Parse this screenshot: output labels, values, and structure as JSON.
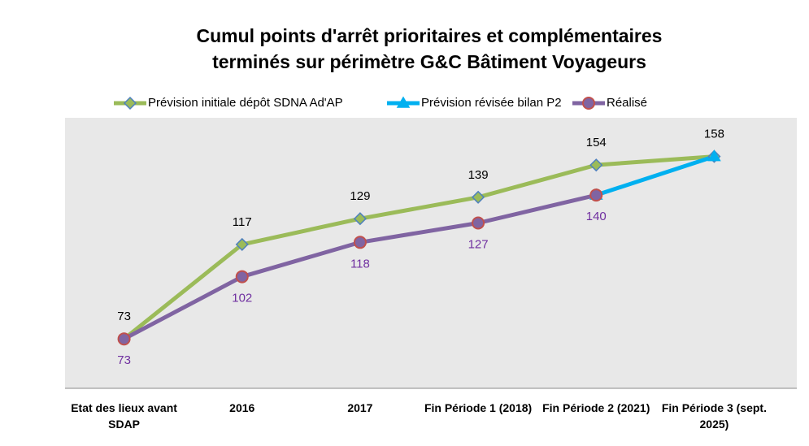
{
  "chart_data": {
    "type": "line",
    "title": "Cumul points d'arrêt prioritaires et complémentaires terminés sur périmètre G&C Bâtiment Voyageurs",
    "categories": [
      "Etat des lieux avant SDAP",
      "2016",
      "2017",
      "Fin Période 1 (2018)",
      "Fin Période 2 (2021)",
      "Fin Période 3 (sept. 2025)"
    ],
    "series": [
      {
        "name": "Prévision initiale dépôt SDNA Ad'AP",
        "color": "#9bbb59",
        "marker": "diamond",
        "marker_edge": "#4f81bd",
        "labels": "above",
        "label_color": "#000000",
        "values": [
          73,
          117,
          129,
          139,
          154,
          158
        ]
      },
      {
        "name": "Prévision révisée bilan P2",
        "color": "#00b0f0",
        "marker": "triangle",
        "marker_edge": "#00b0f0",
        "labels": "none",
        "label_color": "#00b0f0",
        "values": [
          null,
          null,
          null,
          null,
          140,
          158
        ]
      },
      {
        "name": "Réalisé",
        "color": "#8064a2",
        "marker": "circle",
        "marker_edge": "#c0504d",
        "labels": "below",
        "label_color": "#7030a0",
        "values": [
          73,
          102,
          118,
          127,
          140,
          null
        ]
      }
    ],
    "ylim": [
      50,
      176
    ],
    "legend": "top",
    "background": "#e8e8e8"
  }
}
